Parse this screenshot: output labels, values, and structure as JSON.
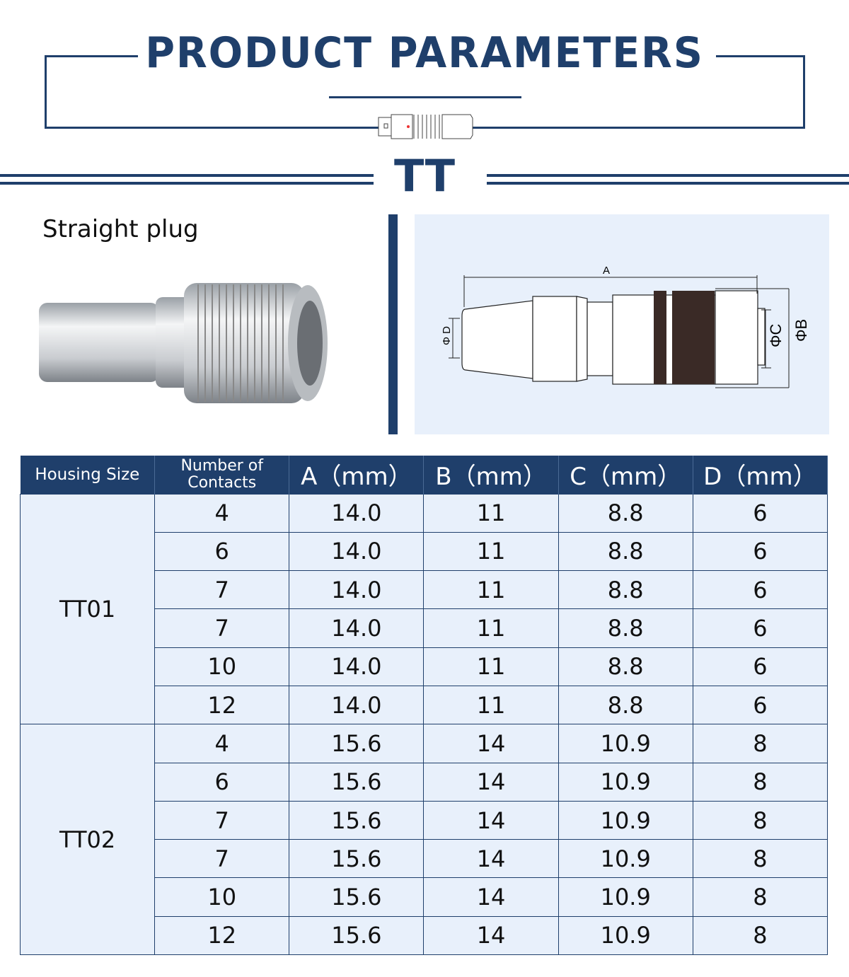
{
  "header": {
    "title": "PRODUCT PARAMETERS",
    "series": "TT"
  },
  "product": {
    "subtitle": "Straight plug"
  },
  "drawing": {
    "labels": {
      "a": "A",
      "b": "ΦB",
      "c": "ΦC",
      "d": "Φ D"
    }
  },
  "table": {
    "headers": [
      "Housing Size",
      "Number of Contacts",
      "A（mm）",
      "B（mm）",
      "C（mm）",
      "D（mm）"
    ],
    "groups": [
      {
        "housing": "TT01",
        "rows": [
          [
            "4",
            "14.0",
            "11",
            "8.8",
            "6"
          ],
          [
            "6",
            "14.0",
            "11",
            "8.8",
            "6"
          ],
          [
            "7",
            "14.0",
            "11",
            "8.8",
            "6"
          ],
          [
            "7",
            "14.0",
            "11",
            "8.8",
            "6"
          ],
          [
            "10",
            "14.0",
            "11",
            "8.8",
            "6"
          ],
          [
            "12",
            "14.0",
            "11",
            "8.8",
            "6"
          ]
        ]
      },
      {
        "housing": "TT02",
        "rows": [
          [
            "4",
            "15.6",
            "14",
            "10.9",
            "8"
          ],
          [
            "6",
            "15.6",
            "14",
            "10.9",
            "8"
          ],
          [
            "7",
            "15.6",
            "14",
            "10.9",
            "8"
          ],
          [
            "7",
            "15.6",
            "14",
            "10.9",
            "8"
          ],
          [
            "10",
            "15.6",
            "14",
            "10.9",
            "8"
          ],
          [
            "12",
            "15.6",
            "14",
            "10.9",
            "8"
          ]
        ]
      }
    ]
  },
  "colors": {
    "navy": "#1f3f6b",
    "table_bg": "#e8f0fb",
    "drawing_bg": "#e8f0fb"
  }
}
